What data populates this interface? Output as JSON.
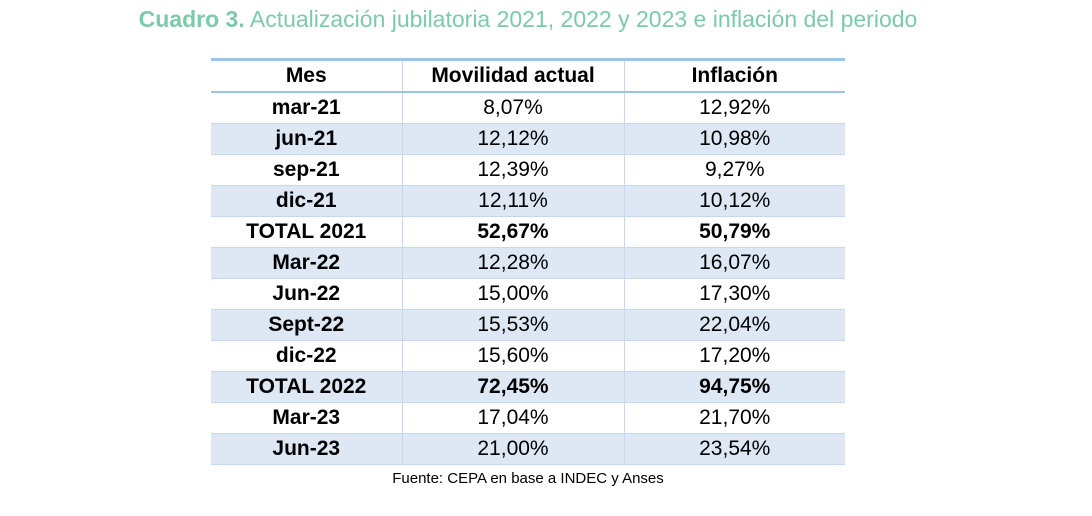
{
  "title": {
    "label": "Cuadro 3.",
    "text": "Actualización jubilatoria 2021, 2022 y 2023 e inflación del periodo"
  },
  "table": {
    "headers": [
      "Mes",
      "Movilidad actual",
      "Inflación"
    ],
    "rows": [
      {
        "mes": "mar-21",
        "movilidad": "8,07%",
        "inflacion": "12,92%",
        "total": false
      },
      {
        "mes": "jun-21",
        "movilidad": "12,12%",
        "inflacion": "10,98%",
        "total": false
      },
      {
        "mes": "sep-21",
        "movilidad": "12,39%",
        "inflacion": "9,27%",
        "total": false
      },
      {
        "mes": "dic-21",
        "movilidad": "12,11%",
        "inflacion": "10,12%",
        "total": false
      },
      {
        "mes": "TOTAL 2021",
        "movilidad": "52,67%",
        "inflacion": "50,79%",
        "total": true
      },
      {
        "mes": "Mar-22",
        "movilidad": "12,28%",
        "inflacion": "16,07%",
        "total": false
      },
      {
        "mes": "Jun-22",
        "movilidad": "15,00%",
        "inflacion": "17,30%",
        "total": false
      },
      {
        "mes": "Sept-22",
        "movilidad": "15,53%",
        "inflacion": "22,04%",
        "total": false
      },
      {
        "mes": "dic-22",
        "movilidad": "15,60%",
        "inflacion": "17,20%",
        "total": false
      },
      {
        "mes": "TOTAL 2022",
        "movilidad": "72,45%",
        "inflacion": "94,75%",
        "total": true
      },
      {
        "mes": "Mar-23",
        "movilidad": "17,04%",
        "inflacion": "21,70%",
        "total": false
      },
      {
        "mes": "Jun-23",
        "movilidad": "21,00%",
        "inflacion": "23,54%",
        "total": false
      }
    ]
  },
  "source": "Fuente: CEPA en base a INDEC y Anses",
  "colors": {
    "title": "#7ccaaa",
    "row_band": "#dde8f4",
    "header_rule": "#9dc3e6"
  }
}
